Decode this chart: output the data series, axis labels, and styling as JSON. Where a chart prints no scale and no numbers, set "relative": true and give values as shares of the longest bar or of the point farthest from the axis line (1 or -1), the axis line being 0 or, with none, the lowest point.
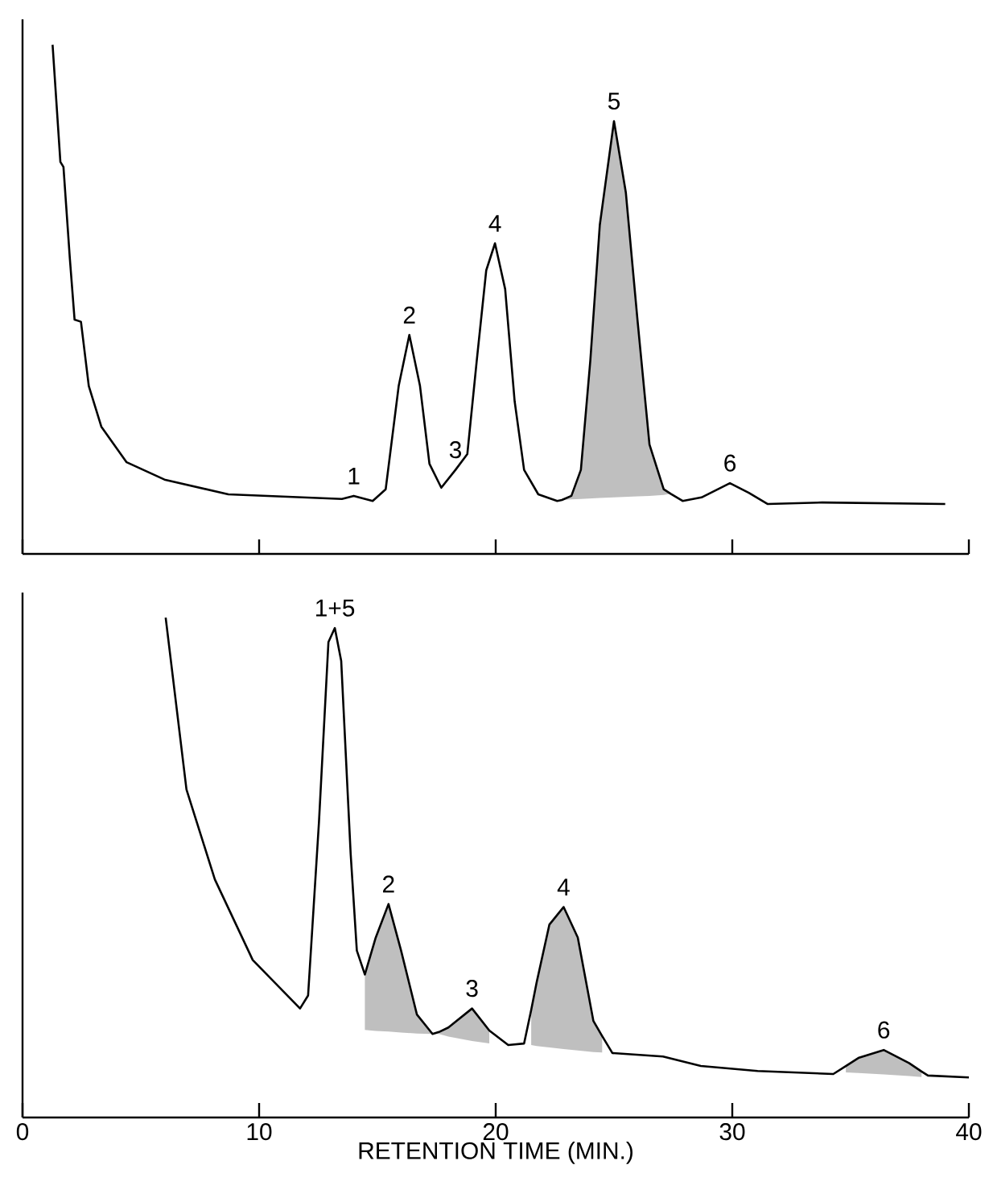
{
  "chart_data": [
    {
      "type": "line",
      "relative": true,
      "xlim": [
        0,
        40
      ],
      "xticks": [
        0,
        10,
        20,
        30,
        40
      ],
      "tick_labels": false,
      "series": [
        {
          "color": "#000000",
          "x": [
            1.27,
            1.6,
            1.73,
            2.0,
            2.2,
            2.47,
            2.8,
            3.33,
            4.4,
            6.0,
            8.7,
            13.5,
            14.0,
            14.8,
            15.35,
            15.9,
            16.35,
            16.8,
            17.2,
            17.7,
            18.3,
            18.8,
            19.2,
            19.6,
            19.97,
            20.4,
            20.8,
            21.2,
            21.8,
            22.6,
            22.8,
            23.2,
            23.6,
            24.0,
            24.4,
            25.0,
            25.5,
            26.0,
            26.5,
            27.1,
            27.4,
            27.9,
            28.7,
            29.9,
            30.7,
            31.5,
            33.8,
            39.0
          ],
          "values": [
            1.0,
            0.77,
            0.76,
            0.58,
            0.46,
            0.456,
            0.33,
            0.25,
            0.18,
            0.146,
            0.117,
            0.108,
            0.114,
            0.104,
            0.127,
            0.33,
            0.43,
            0.33,
            0.177,
            0.13,
            0.165,
            0.196,
            0.38,
            0.557,
            0.61,
            0.52,
            0.3,
            0.165,
            0.117,
            0.104,
            0.106,
            0.114,
            0.165,
            0.38,
            0.646,
            0.85,
            0.71,
            0.456,
            0.215,
            0.127,
            0.118,
            0.104,
            0.111,
            0.139,
            0.12,
            0.098,
            0.101,
            0.098
          ],
          "upper": [
            null,
            null,
            null,
            null,
            null,
            null,
            null,
            null,
            null,
            null,
            null,
            null,
            null,
            null,
            null,
            null,
            null,
            null,
            null,
            null,
            null,
            null,
            null,
            null,
            null,
            null,
            null,
            null,
            null,
            null,
            0.106,
            0.114,
            0.165,
            0.38,
            0.646,
            0.85,
            0.71,
            0.456,
            0.215,
            0.127,
            0.118,
            null,
            null,
            null,
            null,
            null,
            null,
            null
          ],
          "lower": [
            null,
            null,
            null,
            null,
            null,
            null,
            null,
            null,
            null,
            null,
            null,
            null,
            null,
            null,
            null,
            null,
            null,
            null,
            null,
            null,
            null,
            null,
            null,
            null,
            null,
            null,
            null,
            null,
            null,
            null,
            0.106,
            0.107,
            0.108,
            0.109,
            0.11,
            0.111,
            0.112,
            0.113,
            0.114,
            0.116,
            0.118,
            null,
            null,
            null,
            null,
            null,
            null,
            null
          ]
        }
      ],
      "annotations": [
        {
          "text": "1",
          "x": 14.0,
          "y": 0.114
        },
        {
          "text": "2",
          "x": 16.35,
          "y": 0.43
        },
        {
          "text": "3",
          "x": 18.3,
          "y": 0.165
        },
        {
          "text": "4",
          "x": 19.97,
          "y": 0.61
        },
        {
          "text": "5",
          "x": 25.0,
          "y": 0.85
        },
        {
          "text": "6",
          "x": 29.9,
          "y": 0.139
        }
      ]
    },
    {
      "type": "line",
      "relative": true,
      "xlim": [
        0,
        40
      ],
      "xticks": [
        0,
        10,
        20,
        30,
        40
      ],
      "tick_labels": "x",
      "xlabel": "RETENTION TIME (MIN.)",
      "series": [
        {
          "color": "#000000",
          "x": [
            6.05,
            6.93,
            8.13,
            9.73,
            11.73,
            12.07,
            12.53,
            12.93,
            13.2,
            13.47,
            13.87,
            14.13,
            14.47,
            14.93,
            15.47,
            16.0,
            16.67,
            17.33,
            17.6,
            18.0,
            19.0,
            19.73,
            20.53,
            21.2,
            21.5,
            21.73,
            22.27,
            22.87,
            23.47,
            24.13,
            24.5,
            24.93,
            27.07,
            28.67,
            31.07,
            34.27,
            34.8,
            35.33,
            36.4,
            37.47,
            38.0,
            38.27,
            40.0
          ],
          "values": [
            1.0,
            0.656,
            0.476,
            0.315,
            0.218,
            0.244,
            0.591,
            0.951,
            0.979,
            0.913,
            0.527,
            0.334,
            0.286,
            0.36,
            0.427,
            0.334,
            0.206,
            0.167,
            0.171,
            0.18,
            0.218,
            0.174,
            0.145,
            0.148,
            0.215,
            0.27,
            0.386,
            0.421,
            0.36,
            0.193,
            0.163,
            0.129,
            0.122,
            0.103,
            0.093,
            0.087,
            0.103,
            0.119,
            0.135,
            0.109,
            0.092,
            0.084,
            0.08
          ],
          "upper": [
            null,
            null,
            null,
            null,
            null,
            null,
            null,
            null,
            null,
            null,
            null,
            null,
            0.286,
            0.36,
            0.427,
            0.334,
            0.206,
            0.167,
            0.171,
            0.18,
            0.218,
            0.174,
            null,
            null,
            0.215,
            0.27,
            0.386,
            0.421,
            0.36,
            0.193,
            0.163,
            null,
            null,
            null,
            null,
            null,
            0.103,
            0.119,
            0.135,
            0.109,
            0.092,
            null,
            null
          ],
          "lower": [
            null,
            null,
            null,
            null,
            null,
            null,
            null,
            null,
            null,
            null,
            null,
            null,
            0.175,
            0.173,
            0.172,
            0.17,
            0.168,
            0.167,
            0.167,
            0.162,
            0.153,
            0.148,
            null,
            null,
            0.145,
            0.143,
            0.14,
            0.137,
            0.134,
            0.131,
            0.13,
            null,
            null,
            null,
            null,
            null,
            0.09,
            0.089,
            0.086,
            0.083,
            0.081,
            null,
            null
          ]
        }
      ],
      "annotations": [
        {
          "text": "1+5",
          "x": 13.2,
          "y": 0.979
        },
        {
          "text": "2",
          "x": 15.47,
          "y": 0.427
        },
        {
          "text": "3",
          "x": 19.0,
          "y": 0.218
        },
        {
          "text": "4",
          "x": 22.87,
          "y": 0.421
        },
        {
          "text": "6",
          "x": 36.4,
          "y": 0.135
        }
      ]
    }
  ]
}
